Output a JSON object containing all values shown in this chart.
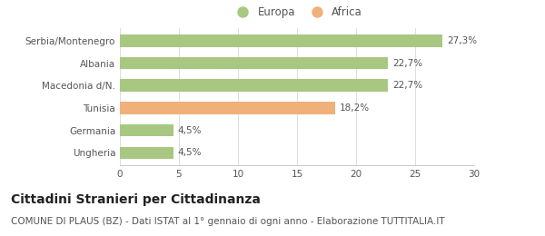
{
  "categories": [
    "Serbia/Montenegro",
    "Albania",
    "Macedonia d/N.",
    "Tunisia",
    "Germania",
    "Ungheria"
  ],
  "values": [
    27.3,
    22.7,
    22.7,
    18.2,
    4.5,
    4.5
  ],
  "bar_colors": [
    "#a8c882",
    "#a8c882",
    "#a8c882",
    "#f0b07a",
    "#a8c882",
    "#a8c882"
  ],
  "bar_labels": [
    "27,3%",
    "22,7%",
    "22,7%",
    "18,2%",
    "4,5%",
    "4,5%"
  ],
  "legend": [
    {
      "label": "Europa",
      "color": "#a8c882"
    },
    {
      "label": "Africa",
      "color": "#f0b07a"
    }
  ],
  "xlim": [
    0,
    30
  ],
  "xticks": [
    0,
    5,
    10,
    15,
    20,
    25,
    30
  ],
  "title": "Cittadini Stranieri per Cittadinanza",
  "subtitle": "COMUNE DI PLAUS (BZ) - Dati ISTAT al 1° gennaio di ogni anno - Elaborazione TUTTITALIA.IT",
  "background_color": "#ffffff",
  "bar_height": 0.55,
  "title_fontsize": 10,
  "subtitle_fontsize": 7.5,
  "label_fontsize": 7.5,
  "tick_fontsize": 7.5,
  "legend_fontsize": 8.5
}
